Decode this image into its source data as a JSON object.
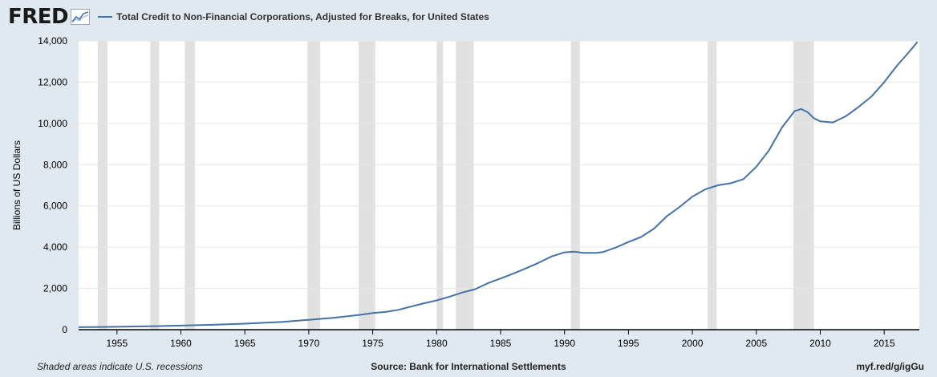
{
  "header": {
    "logo_text": "FRED",
    "logo_icon": "line-graph-icon",
    "series_color": "#4572a7"
  },
  "footer": {
    "left": "Shaded areas indicate U.S. recessions",
    "center": "Source: Bank for International Settlements",
    "right": "myf.red/g/igGu"
  },
  "chart_data": {
    "type": "line",
    "title": "",
    "ylabel": "Billions of US Dollars",
    "xlabel": "",
    "xlim": [
      1952,
      2017.75
    ],
    "ylim": [
      0,
      14000
    ],
    "x_ticks": [
      "1955",
      "1960",
      "1965",
      "1970",
      "1975",
      "1980",
      "1985",
      "1990",
      "1995",
      "2000",
      "2005",
      "2010",
      "2015"
    ],
    "y_ticks": [
      "0",
      "2,000",
      "4,000",
      "6,000",
      "8,000",
      "10,000",
      "12,000",
      "14,000"
    ],
    "grid": true,
    "legend_position": "top-left",
    "recessions": [
      [
        1953.5,
        1954.25
      ],
      [
        1957.6,
        1958.3
      ],
      [
        1960.3,
        1961.1
      ],
      [
        1969.9,
        1970.9
      ],
      [
        1973.9,
        1975.2
      ],
      [
        1980.0,
        1980.5
      ],
      [
        1981.5,
        1982.9
      ],
      [
        1990.5,
        1991.2
      ],
      [
        2001.2,
        2001.9
      ],
      [
        2007.9,
        2009.5
      ]
    ],
    "recession_color": "#e1e1e1",
    "series": [
      {
        "name": "Total Credit to Non-Financial Corporations, Adjusted for Breaks, for United States",
        "color": "#4572a7",
        "x": [
          1952,
          1955,
          1958,
          1960,
          1962,
          1965,
          1968,
          1970,
          1972,
          1974,
          1975,
          1976,
          1977,
          1978,
          1979,
          1980,
          1981,
          1982,
          1983,
          1984,
          1985,
          1986,
          1987,
          1988,
          1989,
          1990,
          1990.75,
          1991.5,
          1992.5,
          1993,
          1994,
          1995,
          1996,
          1997,
          1998,
          1999,
          2000,
          2001,
          2002,
          2003,
          2004,
          2005,
          2006,
          2007,
          2008,
          2008.5,
          2009,
          2009.5,
          2010,
          2011,
          2012,
          2013,
          2014,
          2015,
          2016,
          2017,
          2017.6
        ],
        "values": [
          120,
          140,
          170,
          200,
          230,
          290,
          380,
          480,
          580,
          720,
          810,
          860,
          960,
          1120,
          1280,
          1420,
          1600,
          1800,
          1960,
          2250,
          2480,
          2720,
          2980,
          3250,
          3550,
          3750,
          3780,
          3720,
          3720,
          3760,
          3980,
          4250,
          4500,
          4900,
          5500,
          5950,
          6450,
          6800,
          7000,
          7100,
          7300,
          7900,
          8700,
          9800,
          10600,
          10700,
          10550,
          10250,
          10100,
          10050,
          10350,
          10800,
          11300,
          12000,
          12800,
          13500,
          13950
        ]
      }
    ]
  }
}
